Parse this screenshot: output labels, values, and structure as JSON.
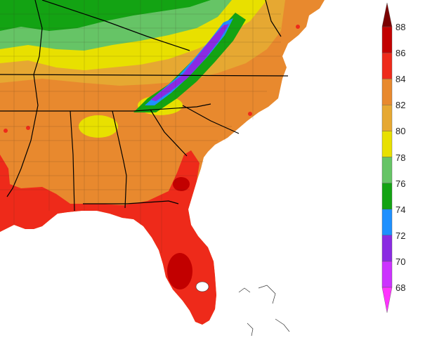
{
  "map": {
    "region": "southeast-united-states",
    "colors": {
      "land_background": "#e8892e",
      "ocean": "#ffffff",
      "state_border": "#000000",
      "county_border": "#3a2a1a"
    }
  },
  "legend": {
    "ticks": [
      "88",
      "86",
      "84",
      "82",
      "80",
      "78",
      "76",
      "74",
      "72",
      "70",
      "68"
    ],
    "bins": [
      {
        "low": 68,
        "high": 70,
        "color": "#cc33ff"
      },
      {
        "low": 70,
        "high": 72,
        "color": "#8a2be2"
      },
      {
        "low": 72,
        "high": 74,
        "color": "#1e90ff"
      },
      {
        "low": 74,
        "high": 76,
        "color": "#13a313"
      },
      {
        "low": 76,
        "high": 78,
        "color": "#66c466"
      },
      {
        "low": 78,
        "high": 80,
        "color": "#e8e000"
      },
      {
        "low": 80,
        "high": 82,
        "color": "#e6a832"
      },
      {
        "low": 82,
        "high": 84,
        "color": "#e8892e"
      },
      {
        "low": 84,
        "high": 86,
        "color": "#ee2a1a"
      },
      {
        "low": 86,
        "high": 88,
        "color": "#c20000"
      }
    ],
    "below_color": "#ff33ff",
    "above_color": "#7a0000"
  }
}
